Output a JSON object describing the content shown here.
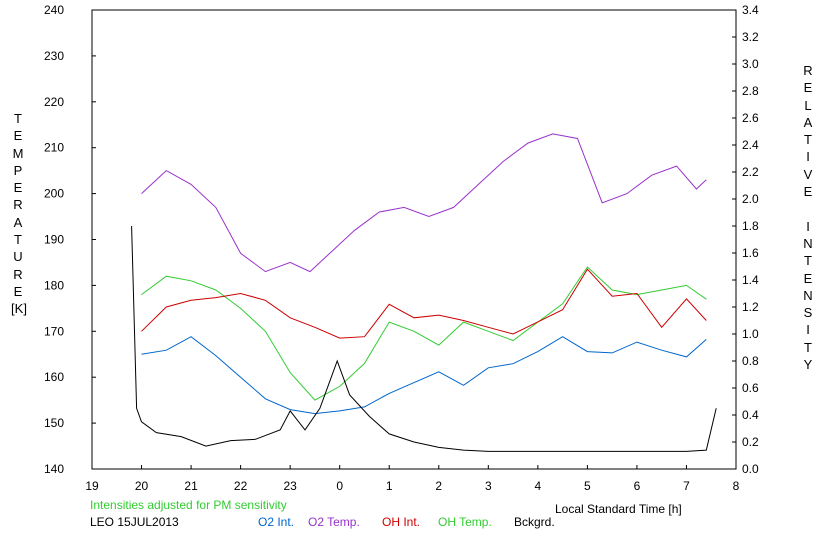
{
  "chart_data": {
    "type": "line",
    "title": "",
    "xlabel": "Local Standard Time [h]",
    "ylabel_left": "TEMPERATURE",
    "ylabel_left_unit": "[K]",
    "ylabel_right": "RELATIVE INTENSITY",
    "x_range": [
      19,
      32
    ],
    "x_tick_labels": [
      "19",
      "20",
      "21",
      "22",
      "23",
      "0",
      "1",
      "2",
      "3",
      "4",
      "5",
      "6",
      "7",
      "8"
    ],
    "y_left_range": [
      140,
      240
    ],
    "y_left_tick_labels": [
      "140",
      "150",
      "160",
      "170",
      "180",
      "190",
      "200",
      "210",
      "220",
      "230",
      "240"
    ],
    "y_right_range": [
      0.0,
      3.4
    ],
    "y_right_tick_labels": [
      "0.0",
      "0.2",
      "0.4",
      "0.6",
      "0.8",
      "1.0",
      "1.2",
      "1.4",
      "1.6",
      "1.8",
      "2.0",
      "2.2",
      "2.4",
      "2.6",
      "2.8",
      "3.0",
      "3.2",
      "3.4"
    ],
    "note": "Intensities adjusted for PM sensitivity",
    "station": "LEO 15JUL2013",
    "series": [
      {
        "name": "O2 Int.",
        "color": "#0066cc",
        "axis": "right",
        "x": [
          20.0,
          20.5,
          21.0,
          21.5,
          22.0,
          22.5,
          23.0,
          23.5,
          24.0,
          24.5,
          25.0,
          25.5,
          26.0,
          26.5,
          27.0,
          27.5,
          28.0,
          28.5,
          29.0,
          29.5,
          30.0,
          30.5,
          31.0,
          31.4
        ],
        "y": [
          0.85,
          0.88,
          0.98,
          0.84,
          0.68,
          0.52,
          0.44,
          0.41,
          0.43,
          0.46,
          0.56,
          0.64,
          0.72,
          0.62,
          0.75,
          0.78,
          0.87,
          0.98,
          0.87,
          0.86,
          0.94,
          0.88,
          0.83,
          0.96
        ]
      },
      {
        "name": "O2 Temp.",
        "color": "#9933cc",
        "axis": "left",
        "x": [
          20.0,
          20.5,
          21.0,
          21.5,
          22.0,
          22.5,
          23.0,
          23.4,
          24.3,
          24.8,
          25.3,
          25.8,
          26.3,
          26.8,
          27.3,
          27.8,
          28.3,
          28.8,
          29.3,
          29.8,
          30.3,
          30.8,
          31.2,
          31.4
        ],
        "y": [
          200,
          205,
          202,
          197,
          187,
          183,
          185,
          183,
          192,
          196,
          197,
          195,
          197,
          202,
          207,
          211,
          213,
          212,
          198,
          200,
          204,
          206,
          201,
          203
        ]
      },
      {
        "name": "OH Int.",
        "color": "#cc0000",
        "axis": "right",
        "x": [
          20.0,
          20.5,
          21.0,
          21.5,
          22.0,
          22.5,
          23.0,
          23.5,
          24.0,
          24.5,
          25.0,
          25.5,
          26.0,
          26.5,
          27.0,
          27.5,
          28.0,
          28.5,
          29.0,
          29.5,
          30.0,
          30.5,
          31.0,
          31.4
        ],
        "y": [
          1.02,
          1.2,
          1.25,
          1.27,
          1.3,
          1.25,
          1.12,
          1.05,
          0.97,
          0.98,
          1.22,
          1.12,
          1.14,
          1.1,
          1.05,
          1.0,
          1.09,
          1.18,
          1.48,
          1.28,
          1.3,
          1.05,
          1.26,
          1.1
        ]
      },
      {
        "name": "OH Temp.",
        "color": "#33cc33",
        "axis": "left",
        "x": [
          20.0,
          20.5,
          21.0,
          21.5,
          22.0,
          22.5,
          23.0,
          23.5,
          24.0,
          24.5,
          25.0,
          25.5,
          26.0,
          26.5,
          27.0,
          27.5,
          28.0,
          28.5,
          29.0,
          29.5,
          30.0,
          30.5,
          31.0,
          31.4
        ],
        "y": [
          178,
          182,
          181,
          179,
          175,
          170,
          161,
          155,
          158,
          163,
          172,
          170,
          167,
          172,
          170,
          168,
          172,
          176,
          184,
          179,
          178,
          179,
          180,
          177
        ]
      },
      {
        "name": "Bckgrd.",
        "color": "#000000",
        "axis": "right",
        "x": [
          19.8,
          19.9,
          20.0,
          20.3,
          20.8,
          21.3,
          21.8,
          22.3,
          22.8,
          23.0,
          23.3,
          23.6,
          23.95,
          24.2,
          24.6,
          25.0,
          25.5,
          26.0,
          26.5,
          27.0,
          28.0,
          29.0,
          30.0,
          31.0,
          31.4,
          31.6
        ],
        "y": [
          1.8,
          0.45,
          0.35,
          0.27,
          0.24,
          0.17,
          0.21,
          0.22,
          0.29,
          0.43,
          0.29,
          0.45,
          0.8,
          0.55,
          0.39,
          0.26,
          0.2,
          0.16,
          0.14,
          0.13,
          0.13,
          0.13,
          0.13,
          0.13,
          0.14,
          0.45
        ]
      }
    ]
  }
}
